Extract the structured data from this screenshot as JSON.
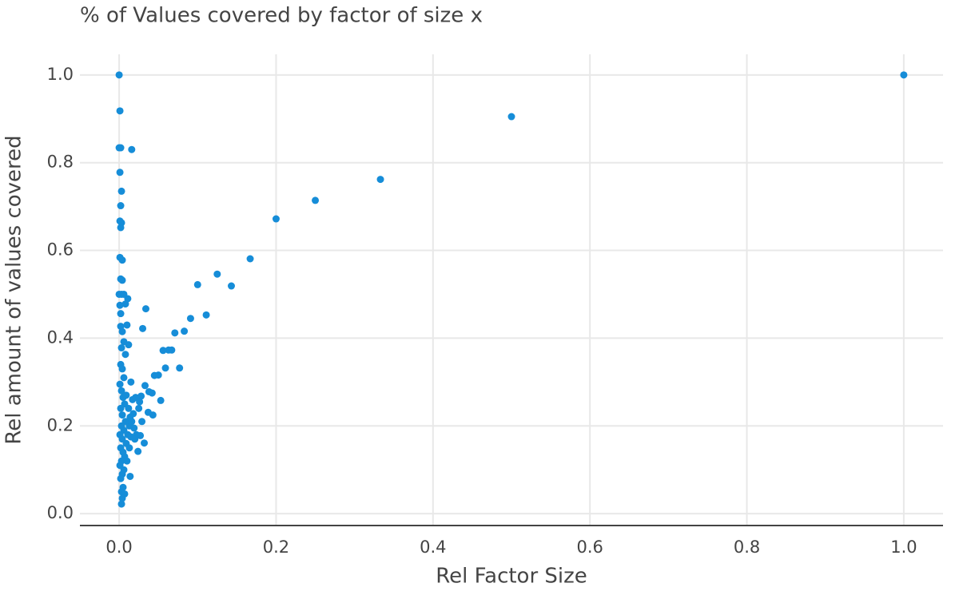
{
  "chart_data": {
    "type": "scatter",
    "title": "% of Values covered by factor of size x",
    "xlabel": "Rel Factor Size",
    "ylabel": "Rel amount of values covered",
    "color": "#168dd8",
    "grid": true,
    "xlim": [
      -0.05,
      1.05
    ],
    "ylim": [
      -0.027,
      1.047
    ],
    "xticks": [
      {
        "value": 0,
        "label": "0.0"
      },
      0.2,
      0.4,
      0.6,
      0.8,
      {
        "value": 1,
        "label": "1.0"
      }
    ],
    "yticks": [
      {
        "value": 0,
        "label": "0.0"
      },
      0.2,
      0.4,
      0.6,
      0.8,
      {
        "value": 1,
        "label": "1.0"
      }
    ],
    "x": [
      1,
      0.5,
      0.333,
      0.25,
      0.2,
      0.167,
      0.143,
      0.125,
      0.111,
      0.1,
      0.091,
      0.083,
      0.077,
      0.071,
      0.067,
      0.063,
      0.059,
      0.056,
      0.053,
      0.05,
      0.045,
      0.043,
      0.042,
      0.038,
      0.037,
      0.034,
      0.033,
      0.032,
      0.03,
      0.029,
      0.028,
      0.027,
      0.026,
      0.025,
      0.024,
      0.022,
      0.021,
      0.02,
      0.019,
      0.018,
      0.016,
      0.015,
      0.014,
      0.013,
      0.012,
      0.011,
      0.01,
      0,
      0.001,
      0,
      0.002,
      0.001,
      0.003,
      0.002,
      0.001,
      0.003,
      0.002,
      0.001,
      0.004,
      0.002,
      0.004,
      0,
      0.003,
      0.006,
      0.008,
      0.001,
      0.002,
      0.002,
      0.004,
      0.006,
      0.003,
      0.008,
      0.002,
      0.004,
      0.006,
      0.001,
      0.003,
      0.005,
      0.007,
      0.002,
      0.004,
      0.008,
      0.003,
      0.006,
      0.001,
      0.004,
      0.009,
      0.002,
      0.005,
      0.007,
      0.003,
      0.001,
      0.006,
      0.004,
      0.002,
      0.005,
      0.003,
      0.007,
      0.004,
      0.003,
      0.012,
      0.014,
      0.016,
      0.011,
      0.013,
      0.009,
      0.017,
      0.01,
      0.015
    ],
    "values": [
      1,
      0.905,
      0.762,
      0.714,
      0.672,
      0.581,
      0.519,
      0.546,
      0.453,
      0.522,
      0.445,
      0.416,
      0.332,
      0.412,
      0.373,
      0.373,
      0.332,
      0.372,
      0.258,
      0.316,
      0.315,
      0.225,
      0.275,
      0.278,
      0.231,
      0.467,
      0.292,
      0.161,
      0.422,
      0.21,
      0.268,
      0.178,
      0.255,
      0.24,
      0.142,
      0.18,
      0.265,
      0.17,
      0.195,
      0.228,
      0.83,
      0.3,
      0.085,
      0.2,
      0.385,
      0.49,
      0.43,
      1,
      0.918,
      0.834,
      0.834,
      0.778,
      0.735,
      0.702,
      0.667,
      0.663,
      0.652,
      0.584,
      0.578,
      0.535,
      0.532,
      0.5,
      0.5,
      0.5,
      0.478,
      0.475,
      0.456,
      0.427,
      0.415,
      0.392,
      0.378,
      0.363,
      0.34,
      0.33,
      0.31,
      0.295,
      0.28,
      0.265,
      0.25,
      0.24,
      0.225,
      0.21,
      0.2,
      0.19,
      0.18,
      0.17,
      0.16,
      0.15,
      0.14,
      0.13,
      0.12,
      0.11,
      0.1,
      0.09,
      0.08,
      0.06,
      0.05,
      0.045,
      0.035,
      0.022,
      0.24,
      0.22,
      0.21,
      0.18,
      0.15,
      0.27,
      0.26,
      0.12,
      0.175
    ]
  }
}
